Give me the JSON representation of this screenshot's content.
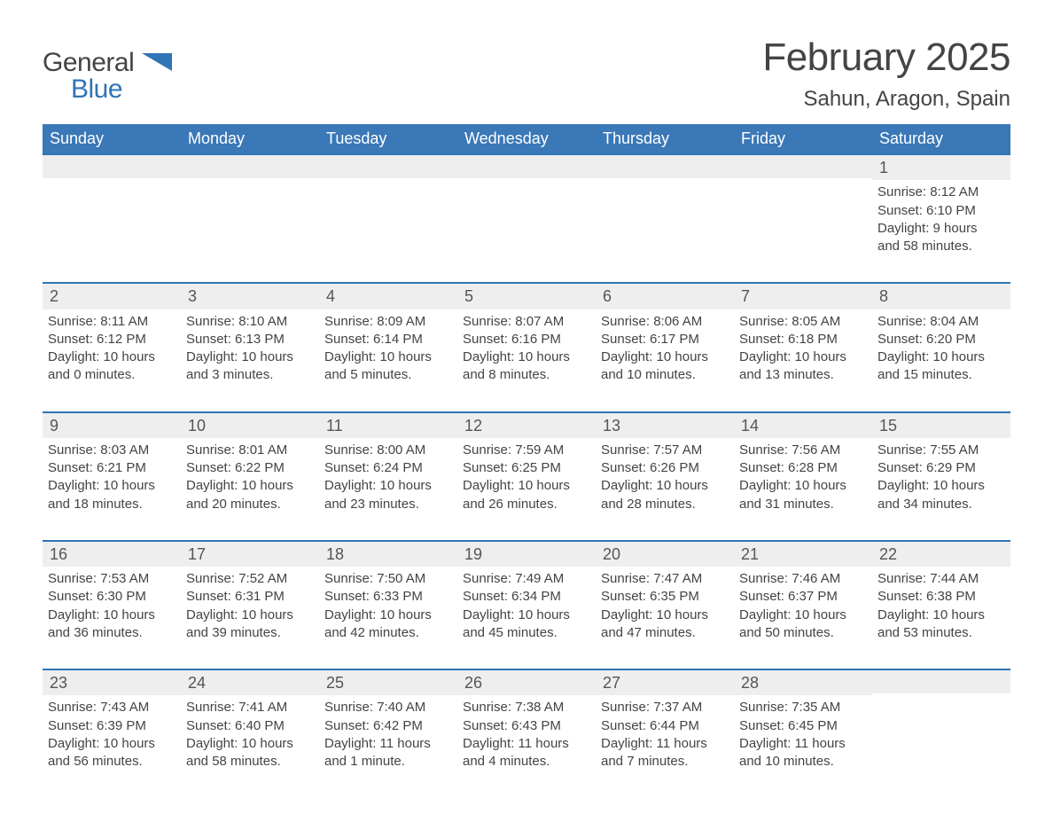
{
  "logo": {
    "text1": "General",
    "text2": "Blue",
    "tri_color": "#2f74b5"
  },
  "title": "February 2025",
  "location": "Sahun, Aragon, Spain",
  "colors": {
    "header_bg": "#3a78b8",
    "header_text": "#ffffff",
    "week_border": "#2f74b5",
    "daynum_bg": "#eeeeee",
    "body_text": "#444444",
    "background": "#ffffff"
  },
  "typography": {
    "title_fontsize": 44,
    "location_fontsize": 24,
    "dayname_fontsize": 18,
    "daynum_fontsize": 18,
    "body_fontsize": 15
  },
  "layout": {
    "columns": 7,
    "rows": 5,
    "cell_aspect": "auto"
  },
  "daynames": [
    "Sunday",
    "Monday",
    "Tuesday",
    "Wednesday",
    "Thursday",
    "Friday",
    "Saturday"
  ],
  "weeks": [
    [
      null,
      null,
      null,
      null,
      null,
      null,
      {
        "d": "1",
        "sunrise": "Sunrise: 8:12 AM",
        "sunset": "Sunset: 6:10 PM",
        "dl1": "Daylight: 9 hours",
        "dl2": "and 58 minutes."
      }
    ],
    [
      {
        "d": "2",
        "sunrise": "Sunrise: 8:11 AM",
        "sunset": "Sunset: 6:12 PM",
        "dl1": "Daylight: 10 hours",
        "dl2": "and 0 minutes."
      },
      {
        "d": "3",
        "sunrise": "Sunrise: 8:10 AM",
        "sunset": "Sunset: 6:13 PM",
        "dl1": "Daylight: 10 hours",
        "dl2": "and 3 minutes."
      },
      {
        "d": "4",
        "sunrise": "Sunrise: 8:09 AM",
        "sunset": "Sunset: 6:14 PM",
        "dl1": "Daylight: 10 hours",
        "dl2": "and 5 minutes."
      },
      {
        "d": "5",
        "sunrise": "Sunrise: 8:07 AM",
        "sunset": "Sunset: 6:16 PM",
        "dl1": "Daylight: 10 hours",
        "dl2": "and 8 minutes."
      },
      {
        "d": "6",
        "sunrise": "Sunrise: 8:06 AM",
        "sunset": "Sunset: 6:17 PM",
        "dl1": "Daylight: 10 hours",
        "dl2": "and 10 minutes."
      },
      {
        "d": "7",
        "sunrise": "Sunrise: 8:05 AM",
        "sunset": "Sunset: 6:18 PM",
        "dl1": "Daylight: 10 hours",
        "dl2": "and 13 minutes."
      },
      {
        "d": "8",
        "sunrise": "Sunrise: 8:04 AM",
        "sunset": "Sunset: 6:20 PM",
        "dl1": "Daylight: 10 hours",
        "dl2": "and 15 minutes."
      }
    ],
    [
      {
        "d": "9",
        "sunrise": "Sunrise: 8:03 AM",
        "sunset": "Sunset: 6:21 PM",
        "dl1": "Daylight: 10 hours",
        "dl2": "and 18 minutes."
      },
      {
        "d": "10",
        "sunrise": "Sunrise: 8:01 AM",
        "sunset": "Sunset: 6:22 PM",
        "dl1": "Daylight: 10 hours",
        "dl2": "and 20 minutes."
      },
      {
        "d": "11",
        "sunrise": "Sunrise: 8:00 AM",
        "sunset": "Sunset: 6:24 PM",
        "dl1": "Daylight: 10 hours",
        "dl2": "and 23 minutes."
      },
      {
        "d": "12",
        "sunrise": "Sunrise: 7:59 AM",
        "sunset": "Sunset: 6:25 PM",
        "dl1": "Daylight: 10 hours",
        "dl2": "and 26 minutes."
      },
      {
        "d": "13",
        "sunrise": "Sunrise: 7:57 AM",
        "sunset": "Sunset: 6:26 PM",
        "dl1": "Daylight: 10 hours",
        "dl2": "and 28 minutes."
      },
      {
        "d": "14",
        "sunrise": "Sunrise: 7:56 AM",
        "sunset": "Sunset: 6:28 PM",
        "dl1": "Daylight: 10 hours",
        "dl2": "and 31 minutes."
      },
      {
        "d": "15",
        "sunrise": "Sunrise: 7:55 AM",
        "sunset": "Sunset: 6:29 PM",
        "dl1": "Daylight: 10 hours",
        "dl2": "and 34 minutes."
      }
    ],
    [
      {
        "d": "16",
        "sunrise": "Sunrise: 7:53 AM",
        "sunset": "Sunset: 6:30 PM",
        "dl1": "Daylight: 10 hours",
        "dl2": "and 36 minutes."
      },
      {
        "d": "17",
        "sunrise": "Sunrise: 7:52 AM",
        "sunset": "Sunset: 6:31 PM",
        "dl1": "Daylight: 10 hours",
        "dl2": "and 39 minutes."
      },
      {
        "d": "18",
        "sunrise": "Sunrise: 7:50 AM",
        "sunset": "Sunset: 6:33 PM",
        "dl1": "Daylight: 10 hours",
        "dl2": "and 42 minutes."
      },
      {
        "d": "19",
        "sunrise": "Sunrise: 7:49 AM",
        "sunset": "Sunset: 6:34 PM",
        "dl1": "Daylight: 10 hours",
        "dl2": "and 45 minutes."
      },
      {
        "d": "20",
        "sunrise": "Sunrise: 7:47 AM",
        "sunset": "Sunset: 6:35 PM",
        "dl1": "Daylight: 10 hours",
        "dl2": "and 47 minutes."
      },
      {
        "d": "21",
        "sunrise": "Sunrise: 7:46 AM",
        "sunset": "Sunset: 6:37 PM",
        "dl1": "Daylight: 10 hours",
        "dl2": "and 50 minutes."
      },
      {
        "d": "22",
        "sunrise": "Sunrise: 7:44 AM",
        "sunset": "Sunset: 6:38 PM",
        "dl1": "Daylight: 10 hours",
        "dl2": "and 53 minutes."
      }
    ],
    [
      {
        "d": "23",
        "sunrise": "Sunrise: 7:43 AM",
        "sunset": "Sunset: 6:39 PM",
        "dl1": "Daylight: 10 hours",
        "dl2": "and 56 minutes."
      },
      {
        "d": "24",
        "sunrise": "Sunrise: 7:41 AM",
        "sunset": "Sunset: 6:40 PM",
        "dl1": "Daylight: 10 hours",
        "dl2": "and 58 minutes."
      },
      {
        "d": "25",
        "sunrise": "Sunrise: 7:40 AM",
        "sunset": "Sunset: 6:42 PM",
        "dl1": "Daylight: 11 hours",
        "dl2": "and 1 minute."
      },
      {
        "d": "26",
        "sunrise": "Sunrise: 7:38 AM",
        "sunset": "Sunset: 6:43 PM",
        "dl1": "Daylight: 11 hours",
        "dl2": "and 4 minutes."
      },
      {
        "d": "27",
        "sunrise": "Sunrise: 7:37 AM",
        "sunset": "Sunset: 6:44 PM",
        "dl1": "Daylight: 11 hours",
        "dl2": "and 7 minutes."
      },
      {
        "d": "28",
        "sunrise": "Sunrise: 7:35 AM",
        "sunset": "Sunset: 6:45 PM",
        "dl1": "Daylight: 11 hours",
        "dl2": "and 10 minutes."
      },
      null
    ]
  ]
}
